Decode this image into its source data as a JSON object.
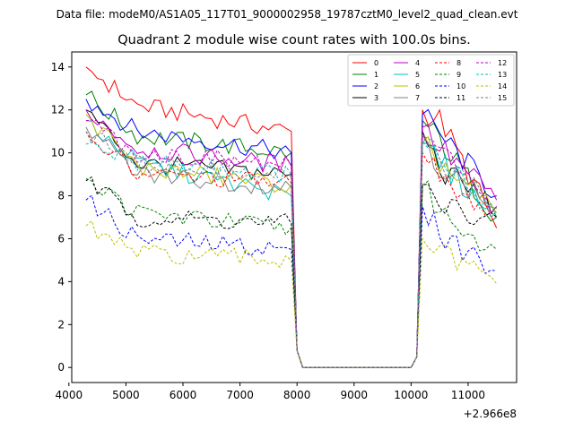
{
  "chart_data": {
    "type": "line",
    "suptitle": "Data file: modeM0/AS1A05_117T01_9000002958_19787cztM0_level2_quad_clean.evt",
    "title": "Quadrant 2 module wise count rates with 100.0s bins.",
    "xlabel": "",
    "ylabel": "",
    "x_offset_label": "+2.966e8",
    "xlim": [
      4050,
      11850
    ],
    "ylim": [
      -0.7,
      14.7
    ],
    "xticks": [
      4000,
      5000,
      6000,
      7000,
      8000,
      9000,
      10000,
      11000
    ],
    "xtick_labels": [
      "4000",
      "5000",
      "6000",
      "7000",
      "8000",
      "9000",
      "10000",
      "11000"
    ],
    "yticks": [
      0,
      2,
      4,
      6,
      8,
      10,
      12,
      14
    ],
    "ytick_labels": [
      "0",
      "2",
      "4",
      "6",
      "8",
      "10",
      "12",
      "14"
    ],
    "legend_position": "top-right",
    "x": {
      "seg1_start": 4300,
      "seg1_end": 7900,
      "seg2_start": 10200,
      "seg2_end": 11500,
      "step": 100,
      "gap_points": [
        8000,
        8100,
        10000,
        10100
      ],
      "gap_values": [
        0.8,
        0.0,
        0.0,
        0.5
      ]
    },
    "series": [
      {
        "name": "0",
        "color": "#ff0000",
        "dash": "solid",
        "seg1": [
          14.0,
          12.2,
          11.0
        ],
        "seg2": [
          12.0,
          11.5,
          6.5
        ]
      },
      {
        "name": "1",
        "color": "#008000",
        "dash": "solid",
        "seg1": [
          12.7,
          10.8,
          10.0
        ],
        "seg2": [
          11.5,
          10.5,
          7.0
        ]
      },
      {
        "name": "2",
        "color": "#0000ff",
        "dash": "solid",
        "seg1": [
          12.5,
          11.0,
          10.0
        ],
        "seg2": [
          11.8,
          10.8,
          8.0
        ]
      },
      {
        "name": "3",
        "color": "#000000",
        "dash": "solid",
        "seg1": [
          12.0,
          9.5,
          9.0
        ],
        "seg2": [
          11.0,
          9.2,
          7.5
        ]
      },
      {
        "name": "4",
        "color": "#bf00bf",
        "dash": "solid",
        "seg1": [
          12.0,
          10.2,
          9.4
        ],
        "seg2": [
          11.2,
          10.2,
          7.8
        ]
      },
      {
        "name": "5",
        "color": "#00bfbf",
        "dash": "solid",
        "seg1": [
          11.5,
          9.5,
          8.0
        ],
        "seg2": [
          10.5,
          9.5,
          7.0
        ]
      },
      {
        "name": "6",
        "color": "#bfbf00",
        "dash": "solid",
        "seg1": [
          11.8,
          9.3,
          8.5
        ],
        "seg2": [
          10.5,
          9.5,
          7.2
        ]
      },
      {
        "name": "7",
        "color": "#808080",
        "dash": "solid",
        "seg1": [
          11.2,
          9.0,
          8.4
        ],
        "seg2": [
          10.8,
          9.3,
          7.4
        ]
      },
      {
        "name": "8",
        "color": "#ff0000",
        "dash": "dashed",
        "seg1": [
          11.0,
          9.0,
          8.6
        ],
        "seg2": [
          10.0,
          9.0,
          7.0
        ]
      },
      {
        "name": "9",
        "color": "#008000",
        "dash": "dashed",
        "seg1": [
          8.8,
          7.2,
          6.5
        ],
        "seg2": [
          8.5,
          7.2,
          5.5
        ]
      },
      {
        "name": "10",
        "color": "#0000ff",
        "dash": "dashed",
        "seg1": [
          7.8,
          6.0,
          5.5
        ],
        "seg2": [
          7.5,
          6.2,
          4.5
        ]
      },
      {
        "name": "11",
        "color": "#000000",
        "dash": "dashed",
        "seg1": [
          8.7,
          7.0,
          6.7
        ],
        "seg2": [
          8.5,
          7.5,
          7.0
        ]
      },
      {
        "name": "12",
        "color": "#bf00bf",
        "dash": "dashed",
        "seg1": [
          11.5,
          10.0,
          9.4
        ],
        "seg2": [
          10.8,
          10.0,
          7.5
        ]
      },
      {
        "name": "13",
        "color": "#00bfbf",
        "dash": "dashed",
        "seg1": [
          10.4,
          9.6,
          9.0
        ],
        "seg2": [
          10.5,
          9.6,
          7.2
        ]
      },
      {
        "name": "14",
        "color": "#bfbf00",
        "dash": "dashed",
        "seg1": [
          6.6,
          5.3,
          5.0
        ],
        "seg2": [
          6.0,
          5.3,
          3.9
        ]
      },
      {
        "name": "15",
        "color": "#808080",
        "dash": "dashed",
        "seg1": [
          11.0,
          9.5,
          8.9
        ],
        "seg2": [
          10.8,
          9.6,
          7.3
        ]
      }
    ]
  }
}
